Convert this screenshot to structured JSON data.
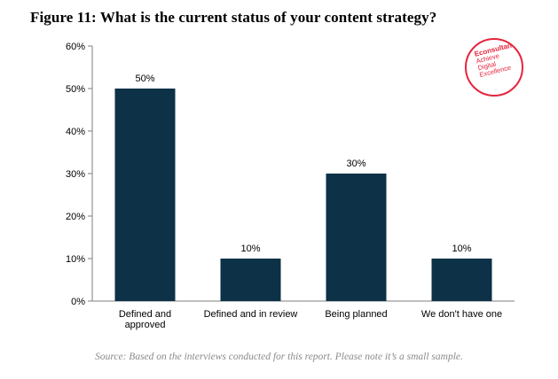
{
  "chart_data": {
    "type": "bar",
    "title": "Figure 11: What is the current status of your content strategy?",
    "categories": [
      [
        "Defined and",
        "approved"
      ],
      [
        "Defined and in review"
      ],
      [
        "Being planned"
      ],
      [
        "We don't have one"
      ]
    ],
    "values": [
      50,
      10,
      30,
      10
    ],
    "data_labels": [
      "50%",
      "10%",
      "30%",
      "10%"
    ],
    "ylim": [
      0,
      60
    ],
    "yticks": [
      0,
      10,
      20,
      30,
      40,
      50,
      60
    ],
    "ytick_labels": [
      "0%",
      "10%",
      "20%",
      "30%",
      "40%",
      "50%",
      "60%"
    ],
    "xlabel": "",
    "ylabel": "",
    "grid": false,
    "bar_color": "#0d3146"
  },
  "source": "Source: Based on the interviews conducted for this report. Please note it’s a small sample.",
  "logo": {
    "brand": "Econsultancy",
    "tagline": [
      "Achieve",
      "Digital",
      "Excellence"
    ]
  },
  "colors": {
    "accent": "#e5253d",
    "bar": "#0d3146",
    "axis": "#7f7f7f",
    "source_text": "#8a8a8a"
  }
}
